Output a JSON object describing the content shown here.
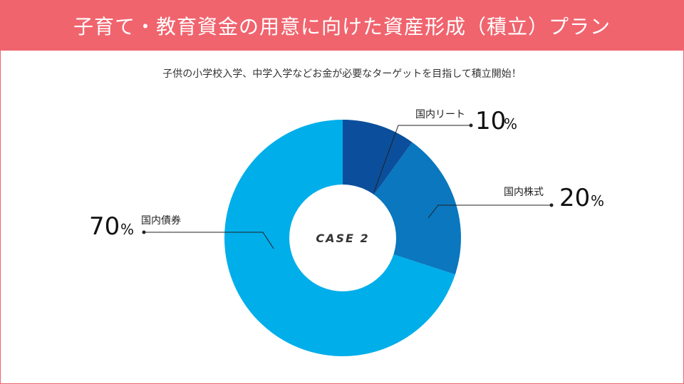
{
  "header": {
    "title": "子育て・教育資金の用意に向けた資産形成（積立）プラン"
  },
  "subtitle": "子供の小学校入学、中学入学などお金が必要なターゲットを目指して積立開始！",
  "chart_data": {
    "type": "pie",
    "variant": "donut",
    "center_label": "CASE 2",
    "slices": [
      {
        "name": "国内リート",
        "value": 10,
        "value_label": "10",
        "unit": "%",
        "color": "#0b4f9c"
      },
      {
        "name": "国内株式",
        "value": 20,
        "value_label": "20",
        "unit": "%",
        "color": "#0a77bf"
      },
      {
        "name": "国内債券",
        "value": 70,
        "value_label": "70",
        "unit": "%",
        "color": "#00aeea"
      }
    ]
  }
}
